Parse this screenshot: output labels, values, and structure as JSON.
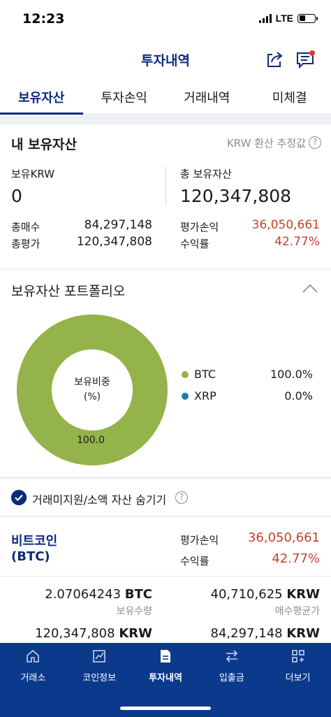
{
  "status_bar": {
    "time": "12:23",
    "network": "LTE"
  },
  "header": {
    "title": "투자내역",
    "share_icon": "share-icon",
    "memo_icon": "memo-icon"
  },
  "tabs": [
    {
      "label": "보유자산",
      "active": true
    },
    {
      "label": "투자손익",
      "active": false
    },
    {
      "label": "거래내역",
      "active": false
    },
    {
      "label": "미체결",
      "active": false
    }
  ],
  "holdings": {
    "title": "내 보유자산",
    "krw_note": "KRW 환산 추정값",
    "krw_label": "보유KRW",
    "krw_value": "0",
    "total_label": "총 보유자산",
    "total_value": "120,347,808",
    "buy_label": "총매수",
    "buy_value": "84,297,148",
    "eval_label": "총평가",
    "eval_value": "120,347,808",
    "pnl_label": "평가손익",
    "pnl_value": "36,050,661",
    "rate_label": "수익률",
    "rate_value": "42.77%"
  },
  "portfolio": {
    "title": "보유자산 포트폴리오",
    "center_label_1": "보유비중",
    "center_label_2": "(%)",
    "slice_label": "100.0",
    "legend": [
      {
        "name": "BTC",
        "pct": "100.0%",
        "color": "#94b34a",
        "share": 100.0
      },
      {
        "name": "XRP",
        "pct": "0.0%",
        "color": "#1f7bb0",
        "share": 0.0
      }
    ]
  },
  "hide_toggle": {
    "label": "거래미지원/소액 자산 숨기기",
    "checked": true
  },
  "coin": {
    "name_kr": "비트코인",
    "name_code": "(BTC)",
    "pnl_label": "평가손익",
    "pnl_value": "36,050,661",
    "rate_label": "수익률",
    "rate_value": "42.77%",
    "qty_value": "2.07064243",
    "qty_unit": "BTC",
    "qty_label": "보유수량",
    "avg_value": "40,710,625",
    "avg_unit": "KRW",
    "avg_label": "매수평균가",
    "eval_value": "120,347,808",
    "eval_unit": "KRW",
    "buy_value": "84,297,148",
    "buy_unit": "KRW"
  },
  "bottom_nav": [
    {
      "label": "거래소",
      "icon": "home-icon",
      "active": false
    },
    {
      "label": "코인정보",
      "icon": "chart-icon",
      "active": false
    },
    {
      "label": "투자내역",
      "icon": "document-icon",
      "active": true
    },
    {
      "label": "입출금",
      "icon": "transfer-icon",
      "active": false
    },
    {
      "label": "더보기",
      "icon": "grid-icon",
      "active": false
    }
  ],
  "colors": {
    "brand": "#0a2a7a",
    "nav_bg": "#0b3a8c",
    "profit_red": "#c8402c"
  }
}
